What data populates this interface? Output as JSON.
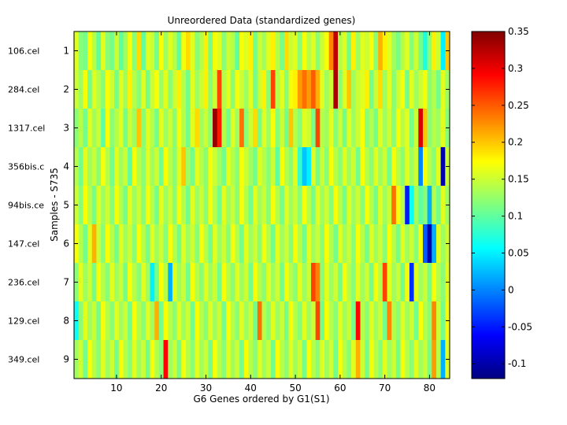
{
  "chart_data": {
    "type": "heatmap",
    "title": "Unreordered Data (standardized genes)",
    "xlabel": "G6 Genes ordered by G1(S1)",
    "ylabel": "Samples - S735",
    "xlim": [
      0.5,
      84.5
    ],
    "x_ticks": [
      10,
      20,
      30,
      40,
      50,
      60,
      70,
      80
    ],
    "y_ticks": [
      1,
      2,
      3,
      4,
      5,
      6,
      7,
      8,
      9
    ],
    "sample_labels": [
      "106.cel",
      "284.cel",
      "1317.cel",
      "356bis.c",
      "94bis.ce",
      "147.cel",
      "236.cel",
      "129.cel",
      "349.cel"
    ],
    "colorbar": {
      "colormap": "jet",
      "range": [
        -0.12,
        0.35
      ],
      "ticks": [
        0.35,
        0.3,
        0.25,
        0.2,
        0.15,
        0.1,
        0.05,
        0,
        -0.05,
        -0.1
      ]
    },
    "n_genes": 84,
    "n_samples": 9,
    "values": [
      [
        0.16,
        0.12,
        0.11,
        0.17,
        0.14,
        0.1,
        0.16,
        0.12,
        0.11,
        0.15,
        0.1,
        0.13,
        0.17,
        0.12,
        0.19,
        0.1,
        0.16,
        0.15,
        0.11,
        0.17,
        0.13,
        0.16,
        0.14,
        0.1,
        0.17,
        0.19,
        0.16,
        0.12,
        0.14,
        0.18,
        0.11,
        0.17,
        0.16,
        0.12,
        0.15,
        0.14,
        0.1,
        0.17,
        0.16,
        0.18,
        0.11,
        0.15,
        0.13,
        0.16,
        0.18,
        0.14,
        0.11,
        0.19,
        0.15,
        0.16,
        0.12,
        0.17,
        0.14,
        0.16,
        0.12,
        0.15,
        0.17,
        0.23,
        0.32,
        0.14,
        0.16,
        0.11,
        0.18,
        0.13,
        0.16,
        0.15,
        0.17,
        0.12,
        0.21,
        0.18,
        0.16,
        0.13,
        0.11,
        0.14,
        0.16,
        0.12,
        0.15,
        0.11,
        0.07,
        0.12,
        0.18,
        0.15,
        0.05,
        0.2
      ],
      [
        0.15,
        0.13,
        0.17,
        0.11,
        0.16,
        0.14,
        0.12,
        0.17,
        0.15,
        0.11,
        0.16,
        0.13,
        0.18,
        0.14,
        0.12,
        0.16,
        0.11,
        0.15,
        0.17,
        0.13,
        0.16,
        0.12,
        0.15,
        0.18,
        0.14,
        0.11,
        0.16,
        0.13,
        0.15,
        0.18,
        0.12,
        0.15,
        0.26,
        0.14,
        0.16,
        0.12,
        0.17,
        0.15,
        0.13,
        0.16,
        0.11,
        0.15,
        0.18,
        0.12,
        0.26,
        0.14,
        0.16,
        0.12,
        0.17,
        0.18,
        0.22,
        0.24,
        0.22,
        0.25,
        0.21,
        0.16,
        0.13,
        0.15,
        0.33,
        0.12,
        0.16,
        0.2,
        0.13,
        0.15,
        0.16,
        0.18,
        0.11,
        0.15,
        0.19,
        0.13,
        0.16,
        0.12,
        0.15,
        0.17,
        0.11,
        0.16,
        0.13,
        0.15,
        0.17,
        0.12,
        0.14,
        0.11,
        0.16,
        0.13
      ],
      [
        0.12,
        0.14,
        0.11,
        0.16,
        0.13,
        0.15,
        0.1,
        0.17,
        0.12,
        0.14,
        0.16,
        0.11,
        0.15,
        0.13,
        0.2,
        0.12,
        0.16,
        0.14,
        0.11,
        0.16,
        0.13,
        0.15,
        0.12,
        0.17,
        0.14,
        0.11,
        0.16,
        0.19,
        0.13,
        0.15,
        0.12,
        0.34,
        0.28,
        0.14,
        0.11,
        0.16,
        0.13,
        0.24,
        0.12,
        0.15,
        0.19,
        0.11,
        0.16,
        0.13,
        0.17,
        0.12,
        0.15,
        0.11,
        0.2,
        0.14,
        0.12,
        0.16,
        0.15,
        0.11,
        0.26,
        0.14,
        0.13,
        0.16,
        0.12,
        0.15,
        0.11,
        0.16,
        0.13,
        0.15,
        0.17,
        0.12,
        0.14,
        0.11,
        0.16,
        0.13,
        0.15,
        0.12,
        0.17,
        0.14,
        0.16,
        0.11,
        0.15,
        0.31,
        0.2,
        0.12,
        0.14,
        0.13,
        0.16,
        0.12
      ],
      [
        0.14,
        0.11,
        0.16,
        0.13,
        0.15,
        0.12,
        0.17,
        0.14,
        0.11,
        0.16,
        0.13,
        0.15,
        0.1,
        0.17,
        0.14,
        0.12,
        0.16,
        0.13,
        0.15,
        0.11,
        0.17,
        0.14,
        0.12,
        0.16,
        0.2,
        0.13,
        0.11,
        0.16,
        0.14,
        0.12,
        0.17,
        0.15,
        0.13,
        0.11,
        0.16,
        0.14,
        0.12,
        0.17,
        0.15,
        0.13,
        0.11,
        0.16,
        0.14,
        0.12,
        0.15,
        0.1,
        0.17,
        0.14,
        0.12,
        0.16,
        0.08,
        0.03,
        0.05,
        0.16,
        0.11,
        0.15,
        0.12,
        0.17,
        0.14,
        0.12,
        0.16,
        0.13,
        0.15,
        0.11,
        0.17,
        0.14,
        0.12,
        0.16,
        0.13,
        0.15,
        0.11,
        0.17,
        0.14,
        0.12,
        0.16,
        0.13,
        0.15,
        0.0,
        0.17,
        0.14,
        0.12,
        0.16,
        -0.1,
        0.15
      ],
      [
        0.15,
        0.12,
        0.17,
        0.14,
        0.11,
        0.16,
        0.13,
        0.15,
        0.12,
        0.17,
        0.14,
        0.11,
        0.16,
        0.13,
        0.15,
        0.12,
        0.17,
        0.14,
        0.11,
        0.16,
        0.13,
        0.15,
        0.12,
        0.17,
        0.14,
        0.11,
        0.16,
        0.13,
        0.15,
        0.12,
        0.17,
        0.14,
        0.11,
        0.16,
        0.13,
        0.15,
        0.12,
        0.17,
        0.14,
        0.11,
        0.16,
        0.13,
        0.15,
        0.12,
        0.17,
        0.14,
        0.11,
        0.16,
        0.13,
        0.15,
        0.12,
        0.17,
        0.14,
        0.11,
        0.16,
        0.13,
        0.15,
        0.12,
        0.17,
        0.14,
        0.11,
        0.16,
        0.13,
        0.15,
        0.12,
        0.17,
        0.14,
        0.11,
        0.16,
        0.13,
        0.15,
        0.24,
        0.17,
        0.14,
        -0.05,
        0.06,
        0.13,
        0.1,
        0.12,
        0.02,
        0.14,
        0.11,
        0.16,
        0.13
      ],
      [
        0.17,
        0.14,
        0.11,
        0.16,
        0.21,
        0.15,
        0.12,
        0.17,
        0.14,
        0.11,
        0.16,
        0.13,
        0.15,
        0.12,
        0.17,
        0.14,
        0.11,
        0.16,
        0.13,
        0.15,
        0.12,
        0.17,
        0.14,
        0.11,
        0.16,
        0.13,
        0.15,
        0.12,
        0.17,
        0.14,
        0.11,
        0.16,
        0.13,
        0.15,
        0.12,
        0.17,
        0.14,
        0.11,
        0.16,
        0.13,
        0.15,
        0.12,
        0.17,
        0.14,
        0.11,
        0.16,
        0.13,
        0.15,
        0.12,
        0.17,
        0.14,
        0.11,
        0.16,
        0.13,
        0.15,
        0.12,
        0.17,
        0.14,
        0.11,
        0.16,
        0.13,
        0.15,
        0.12,
        0.17,
        0.14,
        0.11,
        0.16,
        0.13,
        0.15,
        0.12,
        0.17,
        0.14,
        0.11,
        0.16,
        0.13,
        0.15,
        0.12,
        0.17,
        -0.02,
        -0.1,
        0.02,
        0.16,
        0.13,
        0.15
      ],
      [
        0.12,
        0.16,
        0.13,
        0.15,
        0.11,
        0.17,
        0.14,
        0.12,
        0.16,
        0.13,
        0.15,
        0.11,
        0.17,
        0.14,
        0.12,
        0.16,
        0.13,
        0.05,
        0.11,
        0.17,
        0.14,
        0.02,
        0.16,
        0.13,
        0.15,
        0.11,
        0.17,
        0.14,
        0.12,
        0.16,
        0.13,
        0.15,
        0.11,
        0.17,
        0.14,
        0.12,
        0.16,
        0.13,
        0.15,
        0.11,
        0.17,
        0.14,
        0.12,
        0.16,
        0.13,
        0.15,
        0.11,
        0.17,
        0.14,
        0.12,
        0.16,
        0.13,
        0.15,
        0.26,
        0.23,
        0.12,
        0.16,
        0.13,
        0.15,
        0.11,
        0.17,
        0.14,
        0.12,
        0.16,
        0.13,
        0.15,
        0.11,
        0.17,
        0.14,
        0.26,
        0.16,
        0.13,
        0.15,
        0.11,
        0.17,
        -0.04,
        0.16,
        0.13,
        0.15,
        0.11,
        0.17,
        0.14,
        0.12,
        0.16
      ],
      [
        0.06,
        0.12,
        0.16,
        0.13,
        0.15,
        0.11,
        0.17,
        0.14,
        0.12,
        0.16,
        0.13,
        0.15,
        0.11,
        0.17,
        0.14,
        0.12,
        0.16,
        0.13,
        0.21,
        0.11,
        0.17,
        0.14,
        0.12,
        0.16,
        0.13,
        0.15,
        0.11,
        0.17,
        0.14,
        0.12,
        0.16,
        0.13,
        0.15,
        0.11,
        0.17,
        0.14,
        0.12,
        0.16,
        0.13,
        0.15,
        0.11,
        0.24,
        0.14,
        0.12,
        0.16,
        0.13,
        0.15,
        0.11,
        0.17,
        0.14,
        0.12,
        0.16,
        0.13,
        0.15,
        0.26,
        0.11,
        0.17,
        0.14,
        0.12,
        0.16,
        0.13,
        0.15,
        0.11,
        0.29,
        0.14,
        0.12,
        0.16,
        0.13,
        0.15,
        0.11,
        0.23,
        0.14,
        0.12,
        0.16,
        0.13,
        0.15,
        0.11,
        0.17,
        0.14,
        0.12,
        0.23,
        0.15,
        0.11,
        0.17
      ],
      [
        0.13,
        0.15,
        0.11,
        0.17,
        0.14,
        0.12,
        0.16,
        0.13,
        0.15,
        0.11,
        0.17,
        0.14,
        0.12,
        0.16,
        0.13,
        0.15,
        0.11,
        0.17,
        0.14,
        0.12,
        0.29,
        0.13,
        0.15,
        0.11,
        0.17,
        0.14,
        0.12,
        0.16,
        0.13,
        0.15,
        0.11,
        0.17,
        0.14,
        0.12,
        0.16,
        0.13,
        0.15,
        0.11,
        0.17,
        0.14,
        0.12,
        0.16,
        0.13,
        0.15,
        0.11,
        0.17,
        0.14,
        0.12,
        0.16,
        0.13,
        0.15,
        0.11,
        0.17,
        0.14,
        0.12,
        0.16,
        0.13,
        0.15,
        0.11,
        0.17,
        0.14,
        0.12,
        0.16,
        0.21,
        0.15,
        0.11,
        0.17,
        0.14,
        0.12,
        0.16,
        0.13,
        0.15,
        0.11,
        0.17,
        0.14,
        0.12,
        0.16,
        0.13,
        0.15,
        0.11,
        0.22,
        0.14,
        0.02,
        0.16
      ]
    ]
  }
}
